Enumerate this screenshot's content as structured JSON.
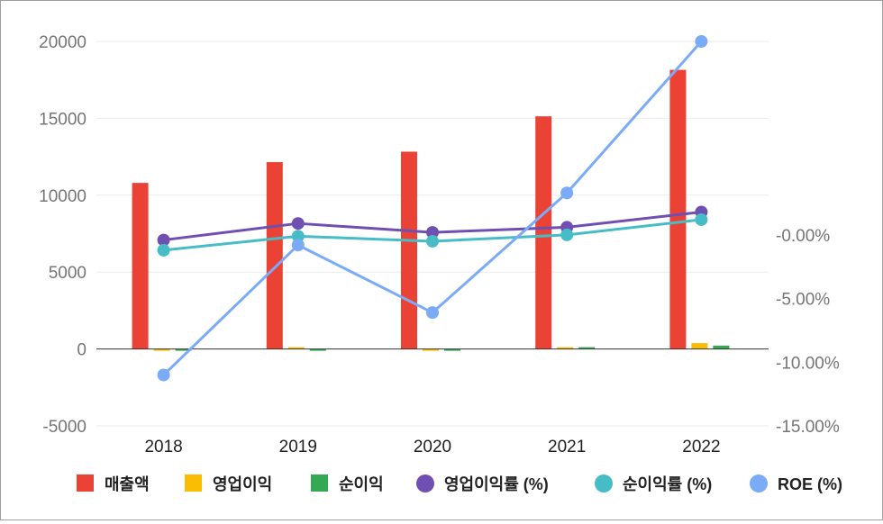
{
  "chart_data": {
    "type": "bar",
    "categories": [
      "2018",
      "2019",
      "2020",
      "2021",
      "2022"
    ],
    "left_axis": {
      "ticks": [
        "20000",
        "15000",
        "10000",
        "5000",
        "0",
        "-5000"
      ],
      "tick_values": [
        20000,
        15000,
        10000,
        5000,
        0,
        -5000
      ],
      "ylim": [
        -5000,
        20000
      ]
    },
    "right_axis": {
      "ticks": [
        "-0.00%",
        "-5.00%",
        "-10.00%",
        "-15.00%"
      ],
      "tick_values": [
        0,
        -5,
        -10,
        -15
      ],
      "ylim": [
        -15,
        15.2
      ]
    },
    "grid": "horizontal",
    "legend_position": "bottom",
    "bar_series": [
      {
        "name": "매출액",
        "color": "#ea4335",
        "values": [
          10800,
          12150,
          12830,
          15130,
          18150
        ]
      },
      {
        "name": "영업이익",
        "color": "#fbbc04",
        "values": [
          -30,
          100,
          -20,
          110,
          380
        ]
      },
      {
        "name": "순이익",
        "color": "#34a853",
        "values": [
          -60,
          -30,
          -20,
          20,
          220
        ]
      }
    ],
    "line_series": [
      {
        "name": "영업이익률 (%)",
        "color": "#6f4fb2",
        "axis": "right",
        "values": [
          -0.4,
          0.9,
          0.2,
          0.6,
          1.8
        ]
      },
      {
        "name": "순이익률 (%)",
        "color": "#46bdc6",
        "axis": "right",
        "values": [
          -1.2,
          -0.1,
          -0.5,
          0.0,
          1.2
        ]
      },
      {
        "name": "ROE (%)",
        "color": "#7baaf7",
        "axis": "right",
        "values": [
          -11.0,
          -0.8,
          -6.1,
          3.3,
          15.2
        ]
      }
    ]
  }
}
